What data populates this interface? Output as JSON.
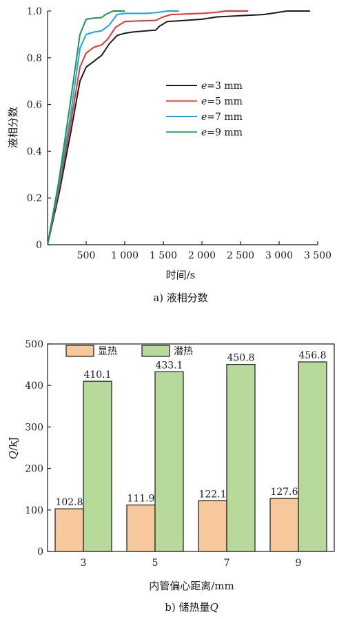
{
  "chart_data": [
    {
      "type": "line",
      "caption": "a) 液相分数",
      "xlabel": "时间/s",
      "ylabel": "液相分数",
      "xlim": [
        0,
        3500
      ],
      "ylim": [
        0,
        1.0
      ],
      "xticks": [
        500,
        1000,
        1500,
        2000,
        2500,
        3000,
        3500
      ],
      "xtick_labels": [
        "500",
        "1 000",
        "1 500",
        "2 000",
        "2 500",
        "3 000",
        "3 500"
      ],
      "yticks": [
        0,
        0.2,
        0.4,
        0.6,
        0.8,
        1.0
      ],
      "ytick_labels": [
        "0",
        "0.2",
        "0.4",
        "0.6",
        "0.8",
        "1.0"
      ],
      "legend_position": "center-right",
      "series": [
        {
          "name": "e=3 mm",
          "legend_var": "e",
          "legend_rest": "=3 mm",
          "color": "#1a1a1a",
          "points": [
            [
              0,
              0
            ],
            [
              150,
              0.22
            ],
            [
              300,
              0.48
            ],
            [
              420,
              0.7
            ],
            [
              500,
              0.76
            ],
            [
              600,
              0.785
            ],
            [
              700,
              0.81
            ],
            [
              800,
              0.86
            ],
            [
              900,
              0.895
            ],
            [
              1000,
              0.905
            ],
            [
              1100,
              0.91
            ],
            [
              1200,
              0.913
            ],
            [
              1300,
              0.916
            ],
            [
              1400,
              0.918
            ],
            [
              1450,
              0.935
            ],
            [
              1550,
              0.955
            ],
            [
              1700,
              0.958
            ],
            [
              2000,
              0.965
            ],
            [
              2200,
              0.975
            ],
            [
              2500,
              0.98
            ],
            [
              2800,
              0.985
            ],
            [
              3000,
              0.995
            ],
            [
              3100,
              1.0
            ],
            [
              3400,
              1.0
            ]
          ]
        },
        {
          "name": "e=5 mm",
          "legend_var": "e",
          "legend_rest": "=5 mm",
          "color": "#e8312a",
          "points": [
            [
              0,
              0
            ],
            [
              150,
              0.24
            ],
            [
              300,
              0.52
            ],
            [
              420,
              0.76
            ],
            [
              500,
              0.82
            ],
            [
              600,
              0.845
            ],
            [
              700,
              0.855
            ],
            [
              780,
              0.88
            ],
            [
              880,
              0.93
            ],
            [
              1000,
              0.955
            ],
            [
              1200,
              0.958
            ],
            [
              1400,
              0.96
            ],
            [
              1500,
              0.975
            ],
            [
              1600,
              0.985
            ],
            [
              2000,
              0.99
            ],
            [
              2200,
              0.995
            ],
            [
              2300,
              1.0
            ],
            [
              2600,
              1.0
            ]
          ]
        },
        {
          "name": "e=7 mm",
          "legend_var": "e",
          "legend_rest": "=7 mm",
          "color": "#1ea1e0",
          "points": [
            [
              0,
              0
            ],
            [
              150,
              0.26
            ],
            [
              300,
              0.56
            ],
            [
              420,
              0.84
            ],
            [
              500,
              0.9
            ],
            [
              600,
              0.91
            ],
            [
              700,
              0.915
            ],
            [
              800,
              0.94
            ],
            [
              900,
              0.985
            ],
            [
              1000,
              0.99
            ],
            [
              1300,
              0.99
            ],
            [
              1450,
              0.995
            ],
            [
              1550,
              1.0
            ],
            [
              1700,
              1.0
            ]
          ]
        },
        {
          "name": "e=9 mm",
          "legend_var": "e",
          "legend_rest": "=9 mm",
          "color": "#16984a",
          "points": [
            [
              0,
              0
            ],
            [
              150,
              0.28
            ],
            [
              300,
              0.62
            ],
            [
              420,
              0.9
            ],
            [
              500,
              0.965
            ],
            [
              600,
              0.97
            ],
            [
              700,
              0.972
            ],
            [
              750,
              0.985
            ],
            [
              850,
              1.0
            ],
            [
              1000,
              1.0
            ]
          ]
        }
      ]
    },
    {
      "type": "bar",
      "caption_main": "b) 储热量",
      "caption_var": "Q",
      "xlabel": "内管偏心距离/mm",
      "ylabel_var": "Q",
      "ylabel_rest": "/kJ",
      "ylim": [
        0,
        500
      ],
      "yticks": [
        0,
        100,
        200,
        300,
        400,
        500
      ],
      "ytick_labels": [
        "0",
        "100",
        "200",
        "300",
        "400",
        "500"
      ],
      "categories": [
        "3",
        "5",
        "7",
        "9"
      ],
      "legend_position": "top-left",
      "series": [
        {
          "name": "显热",
          "color": "#f7c89b",
          "values": [
            102.8,
            111.9,
            122.1,
            127.6
          ],
          "labels": [
            "102.8",
            "111.9",
            "122.1",
            "127.6"
          ]
        },
        {
          "name": "潜热",
          "color": "#b7d99a",
          "values": [
            410.1,
            433.1,
            450.8,
            456.8
          ],
          "labels": [
            "410.1",
            "433.1",
            "450.8",
            "456.8"
          ]
        }
      ]
    }
  ]
}
